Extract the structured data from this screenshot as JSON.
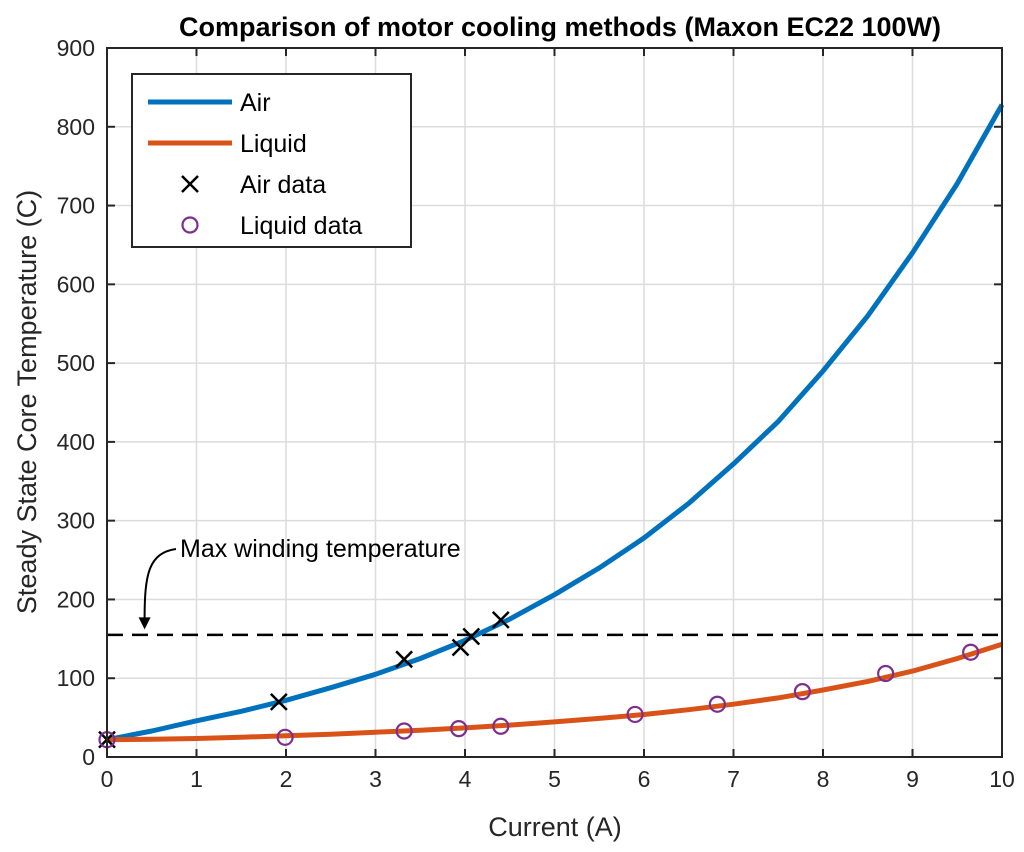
{
  "chart_data": {
    "type": "line",
    "title": "Comparison of motor cooling methods (Maxon EC22 100W)",
    "xlabel": "Current (A)",
    "ylabel": "Steady State Core Temperature (C)",
    "xlim": [
      0,
      10
    ],
    "ylim": [
      0,
      900
    ],
    "xticks": [
      0,
      1,
      2,
      3,
      4,
      5,
      6,
      7,
      8,
      9,
      10
    ],
    "yticks": [
      0,
      100,
      200,
      300,
      400,
      500,
      600,
      700,
      800,
      900
    ],
    "grid": true,
    "legend_position": "top-left",
    "series": [
      {
        "name": "Air",
        "kind": "line",
        "color": "#0072BD",
        "x": [
          0,
          0.5,
          1,
          1.5,
          2,
          2.5,
          3,
          3.5,
          4,
          4.5,
          5,
          5.5,
          6,
          6.5,
          7,
          7.5,
          8,
          8.5,
          9,
          9.5,
          10
        ],
        "y": [
          22,
          33,
          46,
          58,
          72,
          88,
          105,
          125,
          148,
          175,
          206,
          240,
          278,
          322,
          372,
          426,
          490,
          560,
          640,
          728,
          828
        ]
      },
      {
        "name": "Liquid",
        "kind": "line",
        "color": "#D95319",
        "x": [
          0,
          0.5,
          1,
          1.5,
          2,
          2.5,
          3,
          3.5,
          4,
          4.5,
          5,
          5.5,
          6,
          6.5,
          7,
          7.5,
          8,
          8.5,
          9,
          9.5,
          10
        ],
        "y": [
          22,
          22.5,
          23.5,
          25,
          27,
          29,
          31.5,
          34,
          37,
          40.5,
          44.5,
          49,
          54,
          60,
          67,
          75,
          85,
          96,
          109,
          125,
          143
        ]
      },
      {
        "name": "Air data",
        "kind": "marker-x",
        "color": "#000000",
        "x": [
          0,
          1.92,
          3.32,
          3.95,
          4.07,
          4.4
        ],
        "y": [
          22,
          70,
          124,
          139,
          153,
          174
        ]
      },
      {
        "name": "Liquid data",
        "kind": "marker-o",
        "color": "#7E2F8E",
        "x": [
          0,
          1.99,
          3.32,
          3.93,
          4.4,
          5.9,
          6.82,
          7.77,
          8.7,
          9.65
        ],
        "y": [
          22,
          25,
          33,
          36,
          39,
          54,
          67,
          83,
          106,
          133
        ]
      }
    ],
    "reference_line": {
      "y": 155,
      "style": "dashed",
      "color": "#000000"
    },
    "annotation": {
      "text": "Max winding temperature",
      "arrow_target": {
        "x": 0.42,
        "y": 162
      }
    }
  }
}
